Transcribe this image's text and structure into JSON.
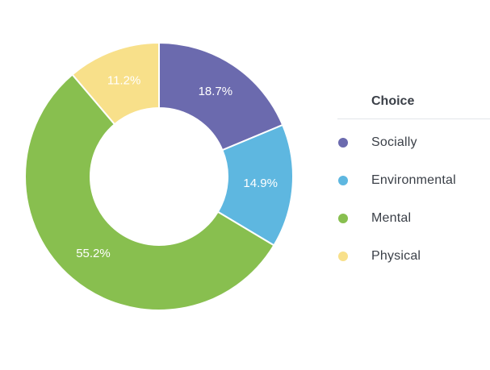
{
  "chart_data": {
    "type": "pie",
    "donut": true,
    "legend_title": "Choice",
    "legend_position": "right",
    "slices": [
      {
        "label": "Socially",
        "value": 18.7,
        "display": "18.7%",
        "color": "#6b6aae"
      },
      {
        "label": "Environmental",
        "value": 14.9,
        "display": "14.9%",
        "color": "#5eb7e0"
      },
      {
        "label": "Mental",
        "value": 55.2,
        "display": "55.2%",
        "color": "#88bf4f"
      },
      {
        "label": "Physical",
        "value": 11.2,
        "display": "11.2%",
        "color": "#f8e08a"
      }
    ]
  }
}
